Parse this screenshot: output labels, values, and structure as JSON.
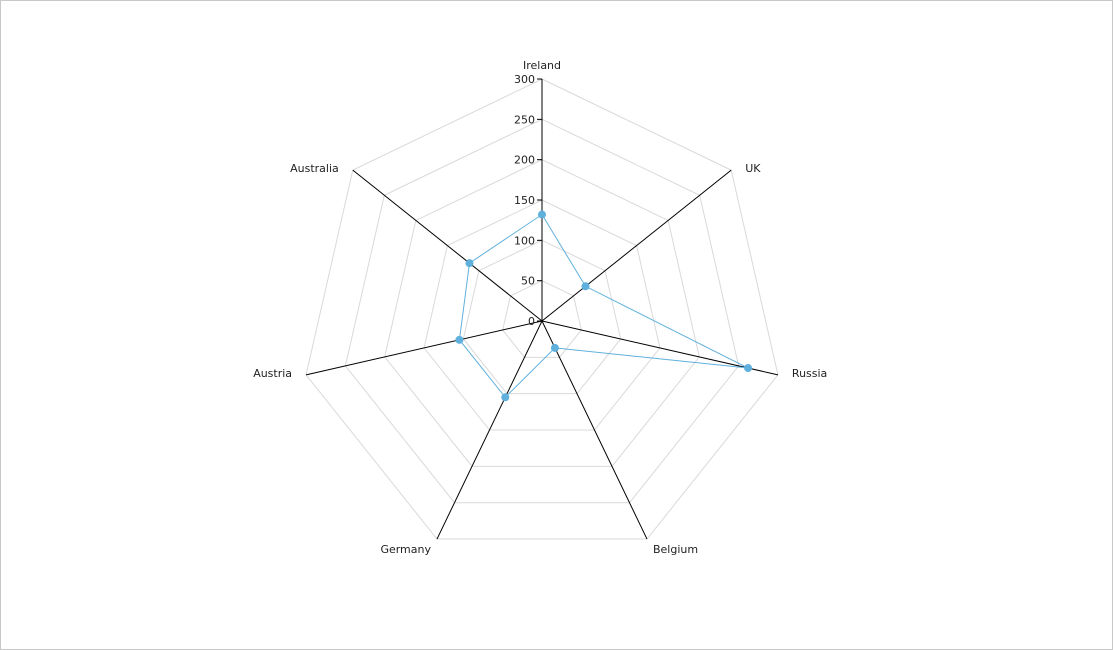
{
  "chart_data": {
    "type": "radar",
    "categories": [
      "Ireland",
      "UK",
      "Russia",
      "Belgium",
      "Germany",
      "Austria",
      "Australia"
    ],
    "series": [
      {
        "values": [
          132,
          69,
          262,
          37,
          105,
          105,
          115
        ]
      }
    ],
    "rlim": [
      0,
      300
    ],
    "rticks": [
      "0",
      "50",
      "100",
      "150",
      "200",
      "250",
      "300"
    ],
    "grid": true,
    "legend": "none"
  },
  "colors": {
    "series": "#5fb0dd",
    "axis": "#000000",
    "grid": "#d9d9d9",
    "frame": "#c8c8c8"
  }
}
